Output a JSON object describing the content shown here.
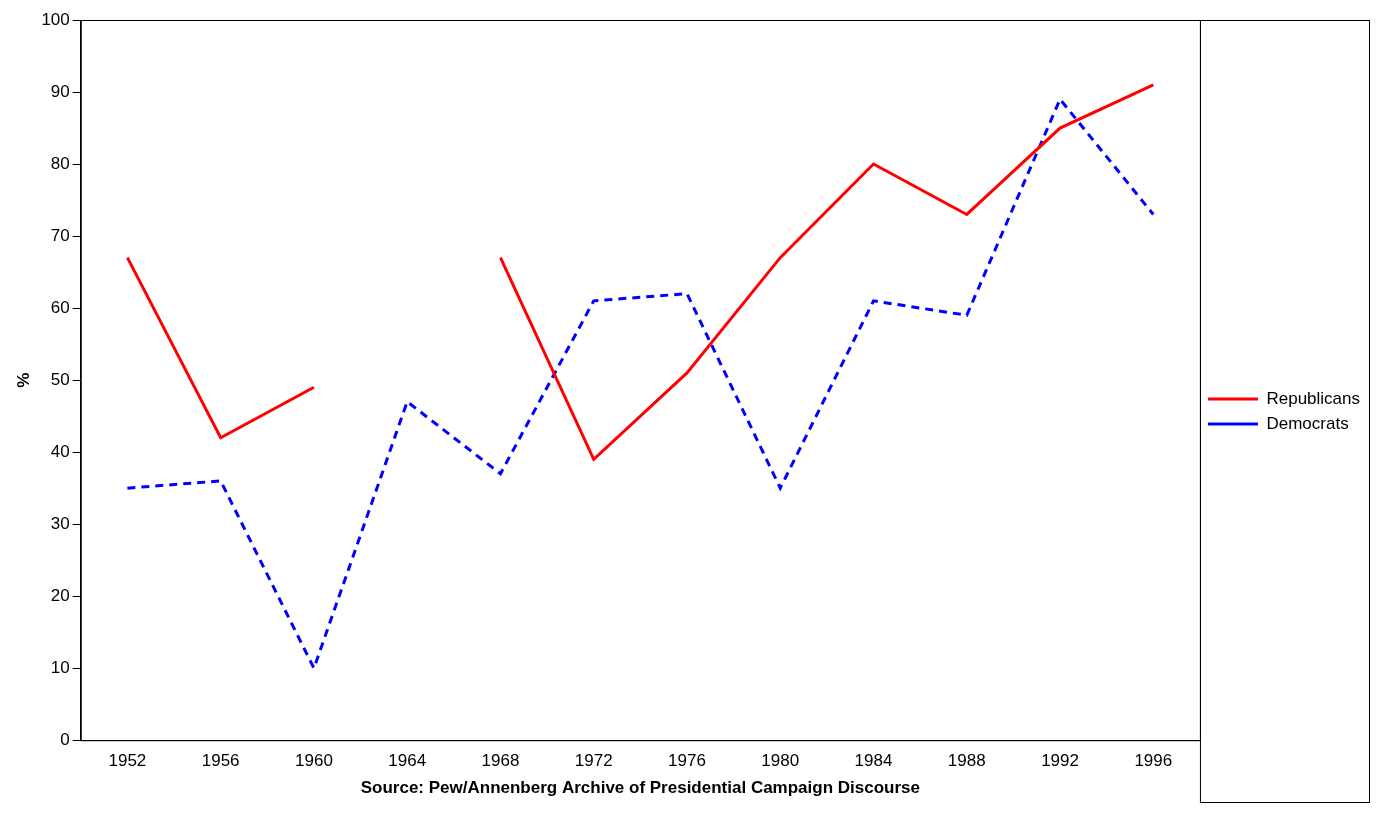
{
  "chart_data": {
    "type": "line",
    "x_label": "Source: Pew/Annenberg Archive of Presidential Campaign Discourse",
    "y_label": "%",
    "categories": [
      "1952",
      "1956",
      "1960",
      "1964",
      "1968",
      "1972",
      "1976",
      "1980",
      "1984",
      "1988",
      "1992",
      "1996"
    ],
    "series": [
      {
        "name": "Republicans",
        "color": "#ff0000",
        "line_style": "solid",
        "values": [
          67,
          42,
          49,
          null,
          67,
          39,
          51,
          67,
          80,
          73,
          85,
          91
        ]
      },
      {
        "name": "Democrats",
        "color": "#0000ff",
        "line_style": "dashed",
        "values": [
          35,
          36,
          10,
          47,
          37,
          61,
          62,
          35,
          61,
          59,
          89,
          73
        ]
      }
    ],
    "ylim": [
      0,
      100
    ],
    "yticks": [
      0,
      10,
      20,
      30,
      40,
      50,
      60,
      70,
      80,
      90,
      100
    ],
    "grid": false,
    "legend": "right"
  }
}
